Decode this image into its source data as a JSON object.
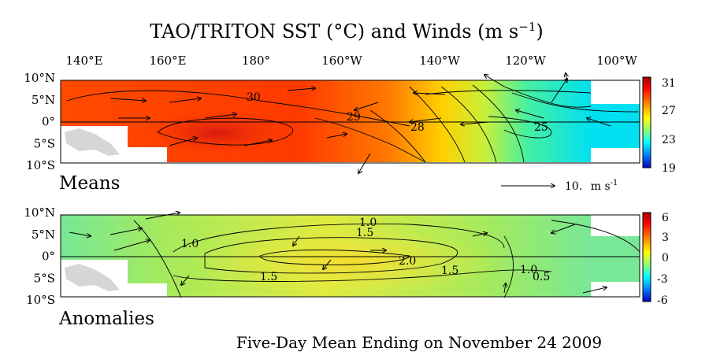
{
  "title": "TAO/TRITON SST (°C) and Winds (m s",
  "title_sup": "−1",
  "title_close": ")",
  "x_ticks": [
    "140°E",
    "160°E",
    "180°",
    "160°W",
    "140°W",
    "120°W",
    "100°W"
  ],
  "y_ticks": [
    "10°N",
    "5°N",
    "0°",
    "5°S",
    "10°S"
  ],
  "panels": {
    "means_label": "Means",
    "anomalies_label": "Anomalies"
  },
  "wind_key": {
    "value": "10.",
    "unit": "m s",
    "unit_sup": "-1"
  },
  "footer": "Five-Day Mean Ending on November 24 2009",
  "chart_data": [
    {
      "type": "heatmap",
      "name": "Means",
      "variable": "SST (°C)",
      "x_range": [
        "137°E",
        "95°W"
      ],
      "y_range": [
        "10°S",
        "10°N"
      ],
      "colorbar": {
        "ticks": [
          31,
          27,
          23,
          19
        ],
        "range": [
          19,
          31
        ]
      },
      "contour_labels": [
        "30",
        "29",
        "28",
        "25"
      ],
      "wind_key": "10. m s-1"
    },
    {
      "type": "heatmap",
      "name": "Anomalies",
      "variable": "SST anomaly (°C)",
      "x_range": [
        "137°E",
        "95°W"
      ],
      "y_range": [
        "10°S",
        "10°N"
      ],
      "colorbar": {
        "ticks": [
          6,
          3,
          0,
          -3,
          -6
        ],
        "range": [
          -6,
          6
        ]
      },
      "contour_labels": [
        "1.0",
        "1.5",
        "1.0",
        "1.5",
        "2.0",
        "1.5",
        "1.0",
        "0.5"
      ]
    }
  ],
  "colors": {
    "land": "#d6d6d6",
    "means_warm": "#ff3c00",
    "means_cool": "#00e6e6",
    "anom_base": "#a6e85c",
    "anom_peak": "#f2e23c"
  }
}
